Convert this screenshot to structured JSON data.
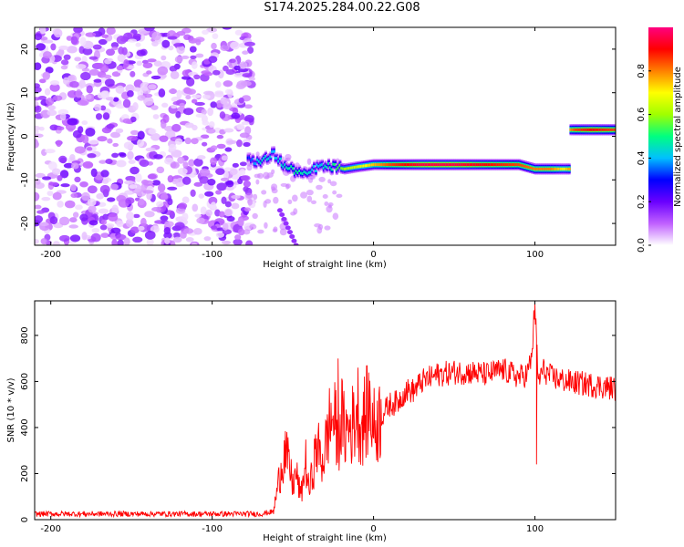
{
  "title": "S174.2025.284.00.22.G08",
  "chart_data": [
    {
      "type": "heatmap",
      "name": "spectrogram",
      "xlabel": "Height of straight line (km)",
      "ylabel": "Frequency (Hz)",
      "xlim": [
        -210,
        150
      ],
      "ylim": [
        -25,
        25
      ],
      "xticks": [
        -200,
        -100,
        0,
        100
      ],
      "yticks": [
        -20,
        -10,
        0,
        10,
        20
      ],
      "colorbar": {
        "label": "Normalized spectral amplitude",
        "range": [
          0,
          1
        ],
        "ticks": [
          0.0,
          0.2,
          0.4,
          0.6,
          0.8
        ],
        "colors": [
          "#ffffff",
          "#c060ff",
          "#6a00ff",
          "#0000ff",
          "#00c0ff",
          "#00ff80",
          "#a0ff00",
          "#ffff00",
          "#ff8000",
          "#ff0000",
          "#ff0080"
        ]
      },
      "noise_region": {
        "x_range": [
          -210,
          -75
        ],
        "amplitude_range": [
          0.0,
          0.18
        ]
      },
      "ridge": [
        {
          "x": -78,
          "freq": -5,
          "amp": 0.3
        },
        {
          "x": -70,
          "freq": -6,
          "amp": 0.45
        },
        {
          "x": -62,
          "freq": -4,
          "amp": 0.4
        },
        {
          "x": -55,
          "freq": -7,
          "amp": 0.45
        },
        {
          "x": -48,
          "freq": -8,
          "amp": 0.5
        },
        {
          "x": -42,
          "freq": -9,
          "amp": 0.45
        },
        {
          "x": -35,
          "freq": -7,
          "amp": 0.4
        },
        {
          "x": -25,
          "freq": -7,
          "amp": 0.5
        },
        {
          "x": -18,
          "freq": -7.5,
          "amp": 0.6
        },
        {
          "x": -10,
          "freq": -7,
          "amp": 0.65
        },
        {
          "x": 0,
          "freq": -6.5,
          "amp": 0.75
        },
        {
          "x": 10,
          "freq": -6.5,
          "amp": 0.85
        },
        {
          "x": 30,
          "freq": -6.5,
          "amp": 0.95
        },
        {
          "x": 50,
          "freq": -6.5,
          "amp": 0.95
        },
        {
          "x": 70,
          "freq": -6.5,
          "amp": 0.9
        },
        {
          "x": 90,
          "freq": -6.5,
          "amp": 0.85
        },
        {
          "x": 100,
          "freq": -7.5,
          "amp": 0.8
        },
        {
          "x": 110,
          "freq": -7.5,
          "amp": 0.8
        },
        {
          "x": 118,
          "freq": -7.5,
          "amp": 0.7
        },
        {
          "x": 125,
          "freq": 1.5,
          "amp": 0.85
        },
        {
          "x": 135,
          "freq": 1.5,
          "amp": 0.9
        },
        {
          "x": 150,
          "freq": 1.5,
          "amp": 0.85
        }
      ],
      "secondary_trace": {
        "x_range": [
          -58,
          -48
        ],
        "freq_range": [
          -17,
          -25
        ],
        "amp": 0.15
      }
    },
    {
      "type": "line",
      "name": "snr",
      "xlabel": "Height of straight line (km)",
      "ylabel": "SNR (10 * v/v)",
      "xlim": [
        -210,
        150
      ],
      "ylim": [
        0,
        950
      ],
      "xticks": [
        -200,
        -100,
        0,
        100
      ],
      "yticks": [
        0,
        200,
        400,
        600,
        800
      ],
      "color": "#ff0000",
      "series": [
        {
          "name": "SNR",
          "x": [
            -210,
            -150,
            -100,
            -70,
            -62,
            -58,
            -55,
            -52,
            -50,
            -48,
            -45,
            -42,
            -40,
            -38,
            -35,
            -32,
            -30,
            -28,
            -25,
            -22,
            -20,
            -18,
            -15,
            -12,
            -10,
            -8,
            -5,
            -2,
            0,
            5,
            10,
            15,
            20,
            25,
            30,
            40,
            50,
            60,
            70,
            80,
            90,
            95,
            98,
            100,
            102,
            105,
            110,
            120,
            130,
            140,
            150
          ],
          "y": [
            25,
            25,
            25,
            25,
            35,
            200,
            300,
            220,
            150,
            200,
            100,
            250,
            120,
            200,
            320,
            250,
            300,
            400,
            450,
            350,
            450,
            380,
            400,
            420,
            500,
            400,
            450,
            500,
            400,
            450,
            500,
            510,
            560,
            560,
            600,
            630,
            640,
            640,
            630,
            650,
            620,
            630,
            700,
            940,
            600,
            650,
            620,
            600,
            590,
            580,
            570
          ]
        }
      ],
      "annotations": [
        {
          "x": -22,
          "y": 700,
          "note": "spike"
        },
        {
          "x": 100,
          "y": 940,
          "note": "spike"
        },
        {
          "x": 101,
          "y": 240,
          "note": "dip"
        }
      ]
    }
  ]
}
